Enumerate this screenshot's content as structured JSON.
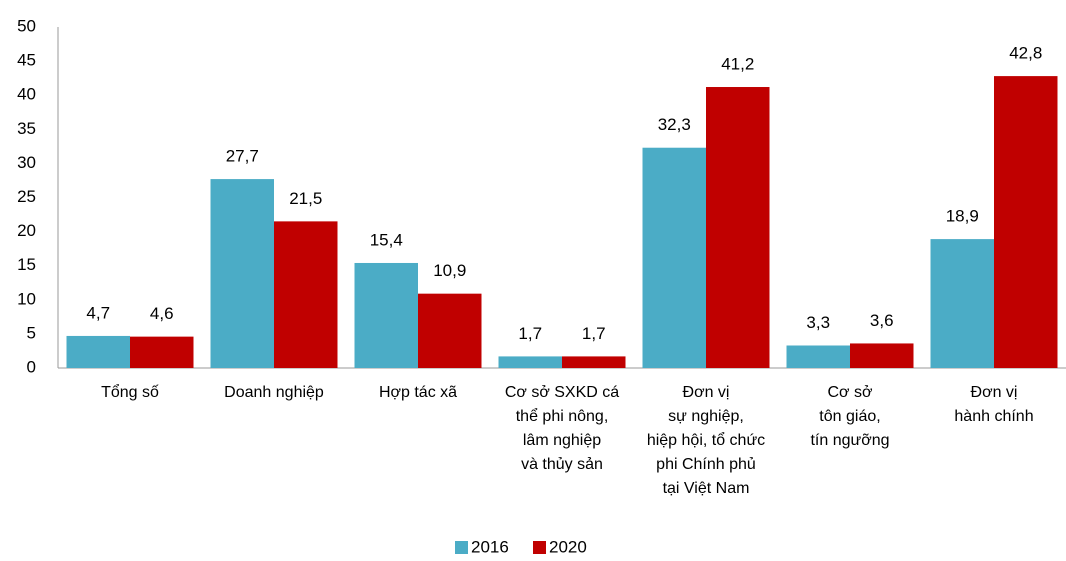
{
  "chart_data": {
    "type": "bar",
    "categories": [
      [
        "Tổng số"
      ],
      [
        "Doanh nghiệp"
      ],
      [
        "Hợp tác xã"
      ],
      [
        "Cơ sở SXKD cá",
        "thể phi nông,",
        "lâm nghiệp",
        "và thủy sản"
      ],
      [
        "Đơn vị",
        "sự nghiệp,",
        "hiệp hội, tổ chức",
        "phi Chính phủ",
        "tại Việt Nam"
      ],
      [
        "Cơ sở",
        "tôn giáo,",
        "tín ngưỡng"
      ],
      [
        "Đơn vị",
        "hành chính"
      ]
    ],
    "series": [
      {
        "name": "2016",
        "color": "#4bacc6",
        "values": [
          4.7,
          27.7,
          15.4,
          1.7,
          32.3,
          3.3,
          18.9
        ],
        "value_labels": [
          "4,7",
          "27,7",
          "15,4",
          "1,7",
          "32,3",
          "3,3",
          "18,9"
        ]
      },
      {
        "name": "2020",
        "color": "#c00000",
        "values": [
          4.6,
          21.5,
          10.9,
          1.7,
          41.2,
          3.6,
          42.8
        ],
        "value_labels": [
          "4,6",
          "21,5",
          "10,9",
          "1,7",
          "41,2",
          "3,6",
          "42,8"
        ]
      }
    ],
    "ylim": [
      0,
      50
    ],
    "yticks": [
      0,
      5,
      10,
      15,
      20,
      25,
      30,
      35,
      40,
      45,
      50
    ],
    "legend": "bottom"
  }
}
